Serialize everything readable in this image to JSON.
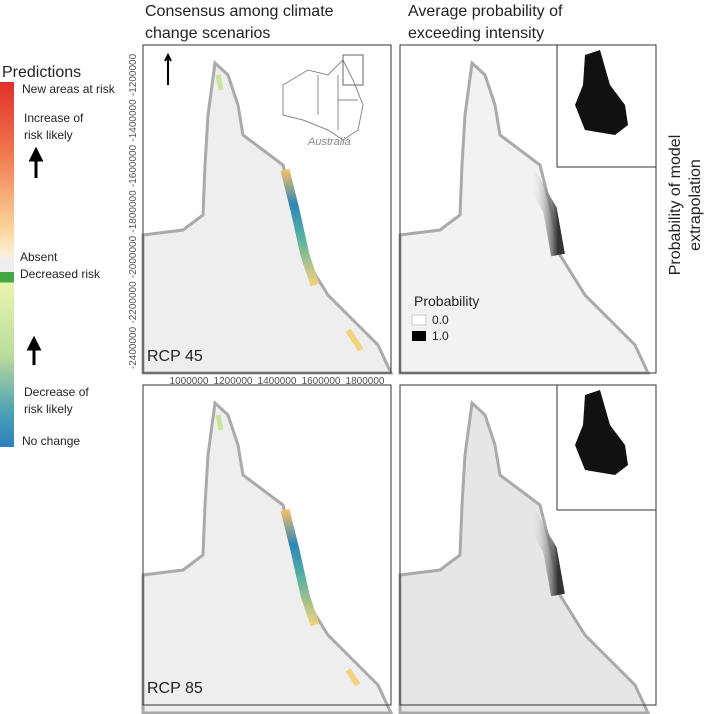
{
  "headers": {
    "consensus": [
      "Consensus among climate",
      "change scenarios"
    ],
    "probability": [
      "Average probability of",
      "exceeding intensity"
    ],
    "extrapolation": [
      "Probability of model",
      "extrapolation"
    ]
  },
  "legend": {
    "title": "Predictions",
    "new_areas": "New areas at risk",
    "increase": [
      "Increase of",
      "risk likely"
    ],
    "absent": "Absent",
    "decreased": "Decreased risk",
    "decrease": [
      "Decrease of",
      "risk likely"
    ],
    "no_change": "No change"
  },
  "inset_label": "Australia",
  "panels": {
    "rcp45": "RCP 45",
    "rcp85": "RCP 85"
  },
  "probability_legend": {
    "title": "Probability",
    "low": "0.0",
    "high": "1.0"
  },
  "y_axis_ticks": [
    -1200000,
    -1400000,
    -1600000,
    -1800000,
    -2000000,
    -2200000,
    -2400000
  ],
  "x_axis_ticks": [
    1000000,
    1200000,
    1400000,
    1600000,
    1800000
  ]
}
